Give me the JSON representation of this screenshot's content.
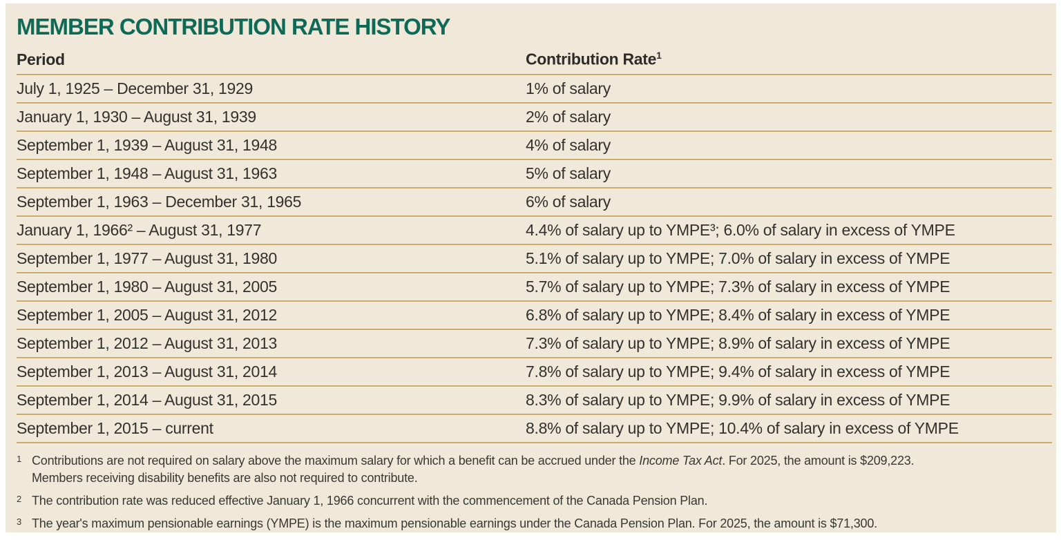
{
  "panel": {
    "title": "MEMBER CONTRIBUTION RATE HISTORY",
    "columns": {
      "period": "Period",
      "rate": "Contribution Rate",
      "rate_footnote_marker": "1"
    },
    "rows": [
      {
        "period": "July 1, 1925 – December 31, 1929",
        "rate": "1% of salary"
      },
      {
        "period": "January 1, 1930 – August 31, 1939",
        "rate": "2% of salary"
      },
      {
        "period": "September 1, 1939 – August 31, 1948",
        "rate": "4% of salary"
      },
      {
        "period": "September 1, 1948 – August 31, 1963",
        "rate": "5% of salary"
      },
      {
        "period": "September 1, 1963 – December 31, 1965",
        "rate": "6% of salary"
      },
      {
        "period": "January 1, 1966² – August 31, 1977",
        "rate": "4.4% of salary up to YMPE³; 6.0% of salary in excess of YMPE"
      },
      {
        "period": "September 1, 1977 – August 31, 1980",
        "rate": "5.1% of salary up to YMPE; 7.0% of salary in excess of YMPE"
      },
      {
        "period": "September 1, 1980 – August 31, 2005",
        "rate": "5.7% of salary up to YMPE; 7.3% of salary in excess of YMPE"
      },
      {
        "period": "September 1, 2005 – August 31, 2012",
        "rate": "6.8% of salary up to YMPE; 8.4% of salary in excess of YMPE"
      },
      {
        "period": "September 1, 2012 – August 31, 2013",
        "rate": "7.3% of salary up to YMPE; 8.9% of salary in excess of YMPE"
      },
      {
        "period": "September 1, 2013 – August 31, 2014",
        "rate": "7.8% of salary up to YMPE; 9.4% of salary in excess of YMPE"
      },
      {
        "period": "September 1, 2014 – August 31, 2015",
        "rate": "8.3% of salary up to YMPE; 9.9% of salary in excess of YMPE"
      },
      {
        "period": "September 1, 2015 – current",
        "rate": "8.8% of salary up to YMPE; 10.4% of salary in excess of YMPE"
      }
    ],
    "footnotes": [
      {
        "marker": "1",
        "text_before_italic": "Contributions are not required on salary above the maximum salary for which a benefit can be accrued under the ",
        "italic_text": "Income Tax Act",
        "text_after_italic": ". For 2025, the amount is $209,223.",
        "line2": "Members receiving disability benefits are also not required to contribute."
      },
      {
        "marker": "2",
        "text": "The contribution rate was reduced effective January 1, 1966 concurrent with the commencement of the Canada Pension Plan."
      },
      {
        "marker": "3",
        "text": "The year's maximum pensionable earnings (YMPE) is the maximum pensionable earnings under the Canada Pension Plan. For 2025, the amount is $71,300."
      }
    ],
    "colors": {
      "panel_background": "#f0e8d9",
      "title_teal": "#0e6a57",
      "divider_tan": "#cfa96a",
      "body_text": "#33312d"
    }
  }
}
